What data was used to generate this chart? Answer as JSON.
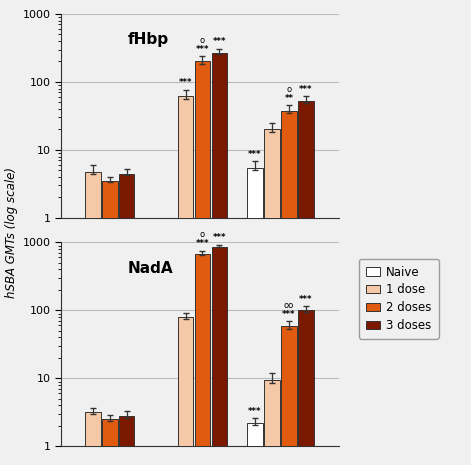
{
  "fhbp": {
    "label": "fHbp",
    "naive": [
      null,
      null,
      5.5
    ],
    "dose1": [
      4.8,
      62.0,
      20.0
    ],
    "dose2": [
      3.5,
      200.0,
      38.0
    ],
    "dose3": [
      4.5,
      270.0,
      52.0
    ],
    "naive_err": [
      null,
      null,
      1.3
    ],
    "dose1_err": [
      1.2,
      15.0,
      5.0
    ],
    "dose2_err": [
      0.5,
      40.0,
      8.0
    ],
    "dose3_err": [
      0.8,
      40.0,
      10.0
    ],
    "annotations": {
      "post": {
        "dose1": "***",
        "dose2": "o\n***",
        "dose3": "***"
      },
      "followup": {
        "naive": "***",
        "dose2": "o\n**",
        "dose3": "***"
      }
    }
  },
  "nada": {
    "label": "NadA",
    "naive": [
      null,
      null,
      2.2
    ],
    "dose1": [
      3.2,
      80.0,
      9.5
    ],
    "dose2": [
      2.5,
      680.0,
      58.0
    ],
    "dose3": [
      2.8,
      870.0,
      100.0
    ],
    "naive_err": [
      null,
      null,
      0.4
    ],
    "dose1_err": [
      0.5,
      12.0,
      2.5
    ],
    "dose2_err": [
      0.4,
      80.0,
      12.0
    ],
    "dose3_err": [
      0.5,
      60.0,
      15.0
    ],
    "annotations": {
      "post": {
        "dose2": "o\n***",
        "dose3": "***"
      },
      "followup": {
        "naive": "***",
        "dose2": "oo\n***",
        "dose3": "***"
      }
    }
  },
  "colors": {
    "naive": "#ffffff",
    "dose1": "#f5c8a8",
    "dose2": "#e05a10",
    "dose3": "#7a1800"
  },
  "edge_color": "#333333",
  "bar_width": 0.055,
  "group_centers": [
    0.18,
    0.48,
    0.76
  ],
  "ylabel": "hSBA GMTs (log scale)",
  "background_color": "#f0f0f0"
}
